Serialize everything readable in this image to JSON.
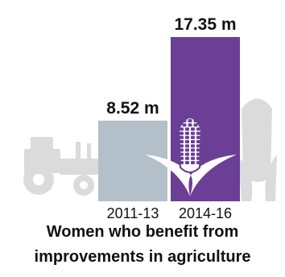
{
  "colors": {
    "bar_2011_13": "#b3c0c9",
    "bar_2014_16": "#6b3f95",
    "background_icons": "#dbdbdb",
    "text": "#111111",
    "corn_kernel": "#ffffff"
  },
  "icons": [
    "tractor-icon",
    "corn-icon"
  ],
  "chart_data": {
    "type": "bar",
    "title": "Women who benefit from improvements in agriculture",
    "title_lines": [
      "Women who benefit from",
      "improvements in agriculture"
    ],
    "xlabel": "",
    "ylabel": "",
    "categories": [
      "2011-13",
      "2014-16"
    ],
    "values": [
      8.52,
      17.35
    ],
    "value_labels": [
      "8.52 m",
      "17.35 m"
    ],
    "unit": "m",
    "ylim": [
      0,
      17.35
    ],
    "grid": false,
    "legend": "none"
  }
}
